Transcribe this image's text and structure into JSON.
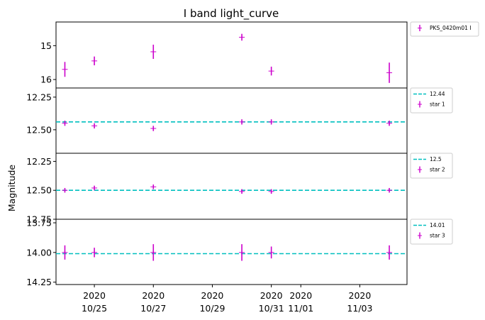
{
  "chart_data": {
    "type": "scatter",
    "title": "I band light_curve",
    "ylabel": "Magnitude",
    "xlabel": "",
    "x_tick_labels": [
      {
        "year": "2020",
        "date": "10/25"
      },
      {
        "year": "2020",
        "date": "10/27"
      },
      {
        "year": "2020",
        "date": "10/29"
      },
      {
        "year": "2020",
        "date": "10/31"
      },
      {
        "year": "2020",
        "date": "11/01"
      },
      {
        "year": "2020",
        "date": "11/03"
      }
    ],
    "x_tick_dates": [
      "2020-10-25",
      "2020-10-27",
      "2020-10-29",
      "2020-10-31",
      "2020-11-01",
      "2020-11-03"
    ],
    "xlim": [
      "2020-10-23T16:48",
      "2020-11-04T14:24"
    ],
    "x_dates": [
      "2020-10-24",
      "2020-10-25",
      "2020-10-27",
      "2020-10-30",
      "2020-10-31",
      "2020-11-04"
    ],
    "panels": [
      {
        "y_inverted": true,
        "ylim": [
          16.25,
          14.3
        ],
        "yticks": [
          15,
          16
        ],
        "tick_labels": [
          "15",
          "16"
        ],
        "grid": false,
        "legend_position": "outside-right",
        "legend": [
          {
            "kind": "errorbar",
            "label": "PKS_0420m01 I",
            "color": "#cc00cc"
          }
        ],
        "series": [
          {
            "name": "PKS_0420m01 I",
            "color": "#cc00cc",
            "y": [
              15.7,
              15.45,
              15.18,
              14.75,
              15.75,
              15.8
            ],
            "yerr": [
              0.22,
              0.13,
              0.21,
              0.1,
              0.13,
              0.3
            ]
          }
        ]
      },
      {
        "y_inverted": true,
        "ylim": [
          12.68,
          12.18
        ],
        "yticks": [
          12.25,
          12.5
        ],
        "tick_labels": [
          "12.25",
          "12.50"
        ],
        "grid": false,
        "legend_position": "outside-right",
        "reference_line": {
          "value": 12.44,
          "label": "12.44",
          "color": "#00bfbf",
          "style": "dashed"
        },
        "legend": [
          {
            "kind": "dashed-line",
            "label": "12.44",
            "color": "#00bfbf"
          },
          {
            "kind": "errorbar",
            "label": "star 1",
            "color": "#cc00cc"
          }
        ],
        "series": [
          {
            "name": "star 1",
            "color": "#cc00cc",
            "y": [
              12.45,
              12.47,
              12.49,
              12.44,
              12.44,
              12.45
            ],
            "yerr": [
              0.02,
              0.02,
              0.02,
              0.02,
              0.02,
              0.02
            ]
          }
        ]
      },
      {
        "y_inverted": true,
        "ylim": [
          12.75,
          12.18
        ],
        "yticks": [
          12.25,
          12.5,
          12.75
        ],
        "tick_labels": [
          "12.25",
          "12.50",
          "12.75"
        ],
        "grid": false,
        "legend_position": "outside-right",
        "reference_line": {
          "value": 12.5,
          "label": "12.5",
          "color": "#00bfbf",
          "style": "dashed"
        },
        "legend": [
          {
            "kind": "dashed-line",
            "label": "12.5",
            "color": "#00bfbf"
          },
          {
            "kind": "errorbar",
            "label": "star 2",
            "color": "#cc00cc"
          }
        ],
        "series": [
          {
            "name": "star 2",
            "color": "#cc00cc",
            "y": [
              12.5,
              12.48,
              12.47,
              12.51,
              12.51,
              12.5
            ],
            "yerr": [
              0.02,
              0.02,
              0.02,
              0.02,
              0.02,
              0.02
            ]
          }
        ]
      },
      {
        "y_inverted": true,
        "ylim": [
          14.27,
          13.72
        ],
        "yticks": [
          13.75,
          14.0,
          14.25
        ],
        "tick_labels": [
          "13.75",
          "14.00",
          "14.25"
        ],
        "grid": false,
        "legend_position": "outside-right",
        "reference_line": {
          "value": 14.01,
          "label": "14.01",
          "color": "#00bfbf",
          "style": "dashed"
        },
        "legend": [
          {
            "kind": "dashed-line",
            "label": "14.01",
            "color": "#00bfbf"
          },
          {
            "kind": "errorbar",
            "label": "star 3",
            "color": "#cc00cc"
          }
        ],
        "series": [
          {
            "name": "star 3",
            "color": "#cc00cc",
            "y": [
              14.0,
              14.0,
              14.0,
              14.0,
              14.0,
              14.0
            ],
            "yerr": [
              0.06,
              0.04,
              0.07,
              0.07,
              0.05,
              0.06
            ]
          }
        ]
      }
    ]
  }
}
